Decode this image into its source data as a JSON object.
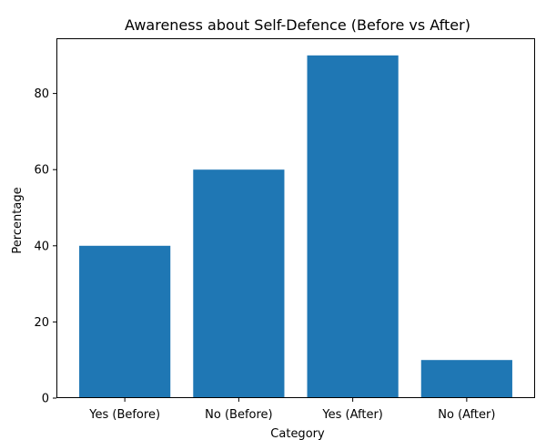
{
  "chart_data": {
    "type": "bar",
    "title": "Awareness about Self-Defence (Before vs After)",
    "xlabel": "Category",
    "ylabel": "Percentage",
    "categories": [
      "Yes (Before)",
      "No (Before)",
      "Yes (After)",
      "No (After)"
    ],
    "values": [
      40,
      60,
      90,
      10
    ],
    "ylim": [
      0,
      94.5
    ],
    "yticks": [
      0,
      20,
      40,
      60,
      80
    ],
    "bar_color": "#1f77b4",
    "grid": false,
    "legend": false
  }
}
